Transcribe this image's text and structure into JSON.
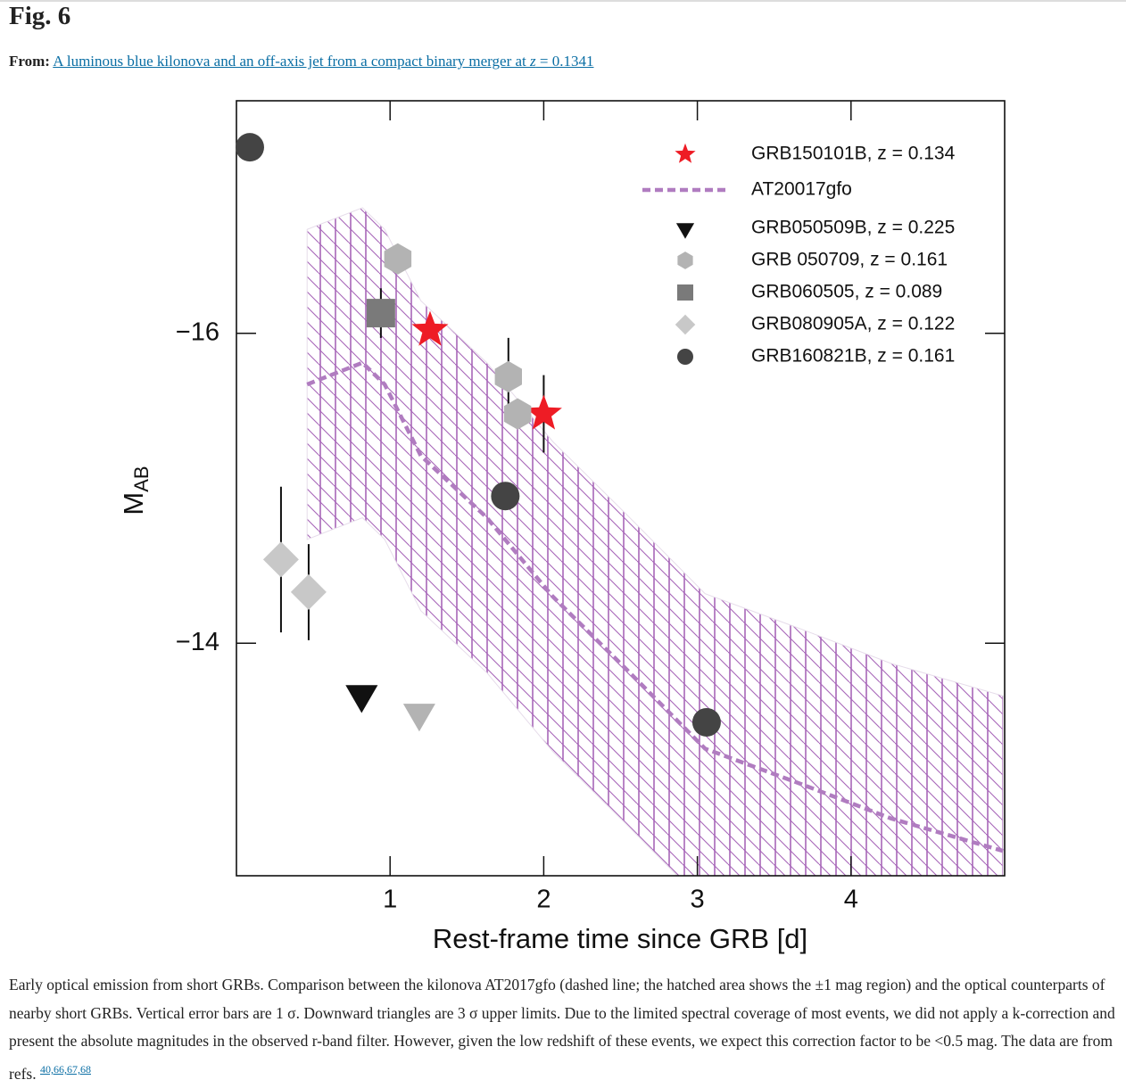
{
  "header": {
    "title": "Fig. 6",
    "from_label": "From:",
    "article": [
      "A luminous blue kilonova and an off-axis jet from a compact binary merger at ",
      "z",
      " = 0.1341"
    ]
  },
  "chart_data": {
    "type": "scatter",
    "xlabel": "Rest-frame time since GRB [d]",
    "ylabel": "M",
    "ylabel_sub": "AB",
    "xlim": [
      0,
      5
    ],
    "xticks": [
      1,
      2,
      3,
      4
    ],
    "ylim": [
      -12.5,
      -17.5
    ],
    "yticks": [
      {
        "value": -16,
        "label": "−16"
      },
      {
        "value": -14,
        "label": "−14"
      }
    ],
    "series": [
      {
        "name": "GRB150101B, z = 0.134",
        "color": "#ee1c25",
        "marker": "star",
        "x": [
          1.26,
          2.0
        ],
        "values": [
          -16.02,
          -15.48
        ],
        "errors": [
          null,
          0.25
        ]
      },
      {
        "name": "AT20017gfo",
        "color": "#b07cc0",
        "marker": "dash",
        "band_halfwidth": 1,
        "x": [
          0.46,
          0.82,
          0.965,
          1.2,
          1.63,
          2.06,
          2.53,
          3.05,
          3.68,
          4.26,
          4.99
        ],
        "values": [
          -15.67,
          -15.81,
          -15.67,
          -15.21,
          -14.81,
          -14.3,
          -13.84,
          -13.32,
          -13.09,
          -12.87,
          -12.66
        ]
      },
      {
        "name": "GRB050509B, z = 0.225",
        "color": "#111111",
        "marker": "triangle-down",
        "x": [
          0.815
        ],
        "values": [
          -13.67
        ]
      },
      {
        "name": "GRB 050709, z = 0.161",
        "color": "#b3b3b3",
        "marker": "hexagon",
        "markers": [
          "hexagon",
          "hexagon",
          "hexagon",
          "triangle-down"
        ],
        "x": [
          1.05,
          1.77,
          1.83,
          1.19
        ],
        "values": [
          -16.48,
          -15.72,
          -15.48,
          -13.55
        ],
        "errors": [
          null,
          0.25,
          null,
          null
        ]
      },
      {
        "name": "GRB060505, z = 0.089",
        "color": "#7a7a7a",
        "marker": "square",
        "x": [
          0.94
        ],
        "values": [
          -16.13
        ],
        "errors": [
          0.16
        ]
      },
      {
        "name": "GRB080905A, z = 0.122",
        "color": "#c8c8c8",
        "marker": "diamond",
        "x": [
          0.29,
          0.47
        ],
        "values": [
          -14.54,
          -14.33
        ],
        "errors": [
          0.47,
          0.31
        ]
      },
      {
        "name": "GRB160821B, z = 0.161",
        "color": "#444444",
        "marker": "circle",
        "x": [
          0.087,
          1.75,
          3.06
        ],
        "values": [
          -17.2,
          -14.95,
          -13.49
        ]
      }
    ]
  },
  "caption": {
    "text": "Early optical emission from short GRBs. Comparison between the kilonova AT2017gfo (dashed line; the hatched area shows the ±1 mag region) and the optical counterparts of nearby short GRBs. Vertical error bars are 1 σ. Downward triangles are 3 σ upper limits. Due to the limited spectral coverage of most events, we did not apply a k-correction and present the absolute magnitudes in the observed r-band filter. However, given the low redshift of these events, we expect this correction factor to be <0.5 mag. The data are from refs.",
    "refs": "40,66,67,68"
  }
}
